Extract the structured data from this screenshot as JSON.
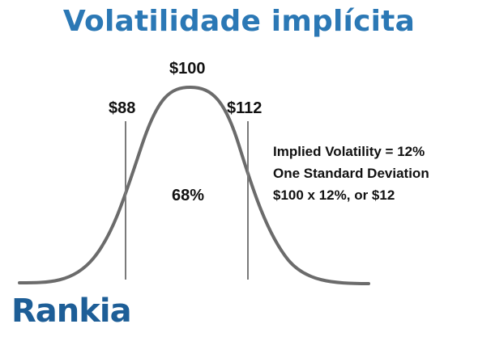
{
  "title": "Volatilidade implícita",
  "labels": {
    "mean": "$100",
    "minus_one_sd": "$88",
    "plus_one_sd": "$112",
    "area_pct": "68%"
  },
  "annotation": [
    "Implied Volatility = 12%",
    "One Standard  Deviation",
    "$100 x 12%, or $12"
  ],
  "brand": {
    "name": "Rankia",
    "color": "#1d5e97"
  },
  "colors": {
    "title": "#2b78b5",
    "curve": "#6b6b6b",
    "sd_lines": "#7a7a7a"
  }
}
